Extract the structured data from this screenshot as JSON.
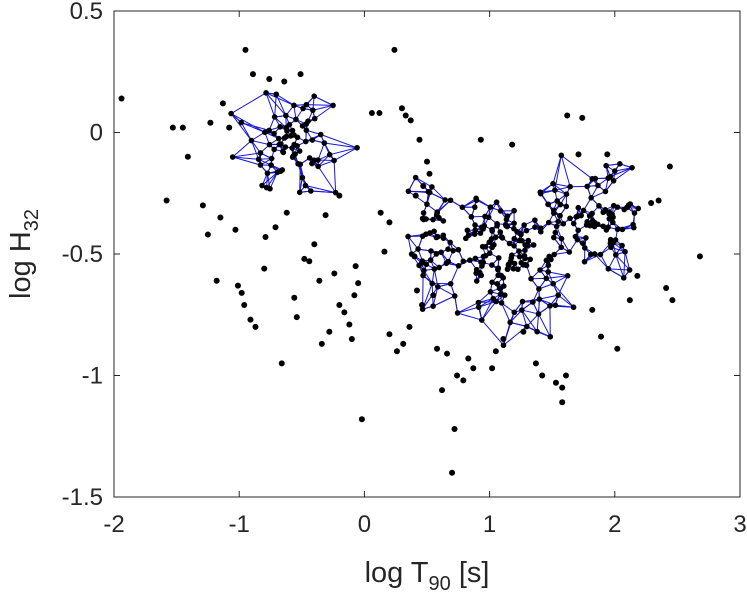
{
  "chart_data": {
    "type": "scatter",
    "title": "",
    "xlabel": {
      "base": "log T",
      "sub": "90",
      "suffix": " [s]"
    },
    "ylabel": {
      "base": "log H",
      "sub": "32"
    },
    "xlim": [
      -2,
      3
    ],
    "ylim": [
      -1.5,
      0.5
    ],
    "xticks": [
      -2,
      -1,
      0,
      1,
      2,
      3
    ],
    "yticks": [
      0.5,
      0,
      -0.5,
      -1,
      -1.5
    ],
    "xtick_labels": [
      "-2",
      "-1",
      "0",
      "1",
      "2",
      "3"
    ],
    "ytick_labels": [
      "0.5",
      "0",
      "-0.5",
      "-1",
      "-1.5"
    ],
    "grid": false,
    "legend": "none",
    "colors": {
      "points": "#000000",
      "network": "#1515d4",
      "axes": "#262626"
    },
    "series": [
      {
        "kind": "points",
        "points": [
          [
            -1.94,
            0.14
          ],
          [
            -1.58,
            -0.28
          ],
          [
            -1.53,
            0.02
          ],
          [
            -1.45,
            0.02
          ],
          [
            -1.41,
            -0.1
          ],
          [
            -1.29,
            -0.3
          ],
          [
            -1.25,
            -0.42
          ],
          [
            -1.23,
            0.04
          ],
          [
            -1.18,
            -0.61
          ],
          [
            -1.15,
            -0.35
          ],
          [
            -1.13,
            0.12
          ],
          [
            -1.08,
            0.02
          ],
          [
            -1.03,
            -0.4
          ],
          [
            -1.01,
            -0.63
          ],
          [
            -0.98,
            -0.66
          ],
          [
            -0.96,
            -0.71
          ],
          [
            -0.95,
            0.34
          ],
          [
            -0.91,
            -0.77
          ],
          [
            -0.89,
            0.24
          ],
          [
            -0.87,
            -0.8
          ],
          [
            -0.8,
            -0.56
          ],
          [
            -0.79,
            -0.43
          ],
          [
            -0.76,
            0.22
          ],
          [
            -0.71,
            -0.39
          ],
          [
            -0.66,
            -0.95
          ],
          [
            -0.64,
            0.21
          ],
          [
            -0.62,
            -0.33
          ],
          [
            -0.56,
            -0.68
          ],
          [
            -0.54,
            -0.76
          ],
          [
            -0.51,
            0.24
          ],
          [
            -0.48,
            -0.52
          ],
          [
            -0.44,
            -0.53
          ],
          [
            -0.4,
            -0.46
          ],
          [
            -0.36,
            -0.61
          ],
          [
            -0.34,
            -0.87
          ],
          [
            -0.31,
            -0.34
          ],
          [
            -0.28,
            -0.82
          ],
          [
            -0.24,
            -0.58
          ],
          [
            -0.2,
            -0.71
          ],
          [
            -0.16,
            -0.74
          ],
          [
            -0.12,
            -0.79
          ],
          [
            -0.1,
            -0.85
          ],
          [
            -0.08,
            -0.67
          ],
          [
            -0.05,
            -0.62
          ],
          [
            -0.02,
            -1.18
          ],
          [
            0.06,
            0.08
          ],
          [
            0.12,
            0.08
          ],
          [
            0.16,
            -0.49
          ],
          [
            0.2,
            -0.83
          ],
          [
            0.24,
            0.34
          ],
          [
            0.26,
            -0.9
          ],
          [
            0.31,
            -0.87
          ],
          [
            0.36,
            -0.8
          ],
          [
            0.42,
            -0.65
          ],
          [
            0.46,
            -0.71
          ],
          [
            0.5,
            -0.12
          ],
          [
            0.52,
            -0.17
          ],
          [
            0.58,
            -0.89
          ],
          [
            0.62,
            -1.06
          ],
          [
            0.66,
            -0.91
          ],
          [
            0.7,
            -1.4
          ],
          [
            0.72,
            -1.22
          ],
          [
            0.74,
            -1.0
          ],
          [
            0.79,
            -1.02
          ],
          [
            0.83,
            -0.93
          ],
          [
            0.87,
            -0.97
          ],
          [
            0.93,
            -0.03
          ],
          [
            1.02,
            -0.97
          ],
          [
            1.05,
            -0.9
          ],
          [
            1.11,
            -0.85
          ],
          [
            1.18,
            -0.05
          ],
          [
            1.27,
            -0.82
          ],
          [
            1.37,
            -0.95
          ],
          [
            1.42,
            -1.0
          ],
          [
            1.53,
            -1.03
          ],
          [
            1.58,
            -1.05
          ],
          [
            1.58,
            -1.11
          ],
          [
            1.61,
            -1.0
          ],
          [
            1.62,
            0.07
          ],
          [
            1.71,
            -0.09
          ],
          [
            1.74,
            0.06
          ],
          [
            1.82,
            -0.73
          ],
          [
            1.89,
            -0.84
          ],
          [
            1.94,
            -0.09
          ],
          [
            2.02,
            -0.89
          ],
          [
            2.12,
            -0.69
          ],
          [
            2.18,
            -0.59
          ],
          [
            2.29,
            -0.29
          ],
          [
            2.35,
            -0.28
          ],
          [
            2.41,
            -0.64
          ],
          [
            2.44,
            -0.14
          ],
          [
            2.46,
            -0.69
          ],
          [
            2.68,
            -0.51
          ],
          [
            0.37,
            0.05
          ],
          [
            0.3,
            0.1
          ],
          [
            0.33,
            0.07
          ],
          [
            0.44,
            -0.03
          ],
          [
            0.41,
            -0.26
          ],
          [
            0.47,
            -0.22
          ],
          [
            0.4,
            -0.51
          ],
          [
            0.2,
            -0.37
          ],
          [
            -0.2,
            -0.26
          ],
          [
            -0.07,
            -0.55
          ],
          [
            0.13,
            -0.33
          ],
          [
            0.55,
            -0.67
          ]
        ]
      },
      {
        "kind": "network",
        "clusters": [
          {
            "center": [
              -0.6,
              -0.05
            ],
            "spread": [
              0.55,
              0.26
            ],
            "nodes": 80
          },
          {
            "center": [
              0.55,
              -0.45
            ],
            "spread": [
              0.28,
              0.3
            ],
            "nodes": 50
          },
          {
            "center": [
              1.15,
              -0.5
            ],
            "spread": [
              0.62,
              0.36
            ],
            "nodes": 160
          },
          {
            "center": [
              1.85,
              -0.35
            ],
            "spread": [
              0.5,
              0.27
            ],
            "nodes": 90
          }
        ]
      }
    ]
  }
}
